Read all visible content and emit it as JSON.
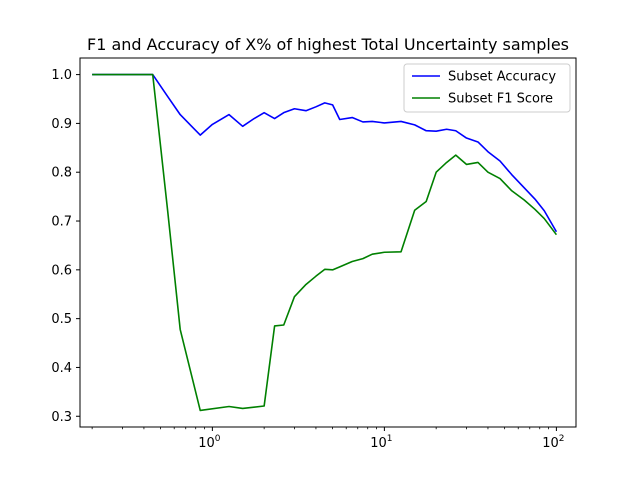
{
  "chart_data": {
    "type": "line",
    "title": "F1 and Accuracy of X% of highest Total Uncertainty samples",
    "xlabel": "",
    "ylabel": "",
    "xscale": "log",
    "xlim": [
      0.17,
      130
    ],
    "ylim": [
      0.278,
      1.034
    ],
    "grid": false,
    "legend_position": "top-right",
    "x_ticks": [
      {
        "value": 1,
        "base": "10",
        "exp": "0"
      },
      {
        "value": 10,
        "base": "10",
        "exp": "1"
      },
      {
        "value": 100,
        "base": "10",
        "exp": "2"
      }
    ],
    "y_ticks": [
      {
        "value": 0.3,
        "label": "0.3"
      },
      {
        "value": 0.4,
        "label": "0.4"
      },
      {
        "value": 0.5,
        "label": "0.5"
      },
      {
        "value": 0.6,
        "label": "0.6"
      },
      {
        "value": 0.7,
        "label": "0.7"
      },
      {
        "value": 0.8,
        "label": "0.8"
      },
      {
        "value": 0.9,
        "label": "0.9"
      },
      {
        "value": 1.0,
        "label": "1.0"
      }
    ],
    "series": [
      {
        "name": "Subset Accuracy",
        "color": "#0000ff",
        "points": [
          [
            0.2,
            1.0
          ],
          [
            0.3,
            1.0
          ],
          [
            0.45,
            1.0
          ],
          [
            0.55,
            0.955
          ],
          [
            0.65,
            0.918
          ],
          [
            0.85,
            0.876
          ],
          [
            1.0,
            0.898
          ],
          [
            1.25,
            0.918
          ],
          [
            1.5,
            0.894
          ],
          [
            1.75,
            0.91
          ],
          [
            2.0,
            0.922
          ],
          [
            2.3,
            0.91
          ],
          [
            2.6,
            0.922
          ],
          [
            3.0,
            0.93
          ],
          [
            3.5,
            0.926
          ],
          [
            4.0,
            0.934
          ],
          [
            4.5,
            0.942
          ],
          [
            5.0,
            0.938
          ],
          [
            5.5,
            0.908
          ],
          [
            6.5,
            0.912
          ],
          [
            7.5,
            0.903
          ],
          [
            8.5,
            0.904
          ],
          [
            10.0,
            0.901
          ],
          [
            12.5,
            0.904
          ],
          [
            15.0,
            0.897
          ],
          [
            17.5,
            0.885
          ],
          [
            20.0,
            0.884
          ],
          [
            23.0,
            0.888
          ],
          [
            26.0,
            0.885
          ],
          [
            30.0,
            0.87
          ],
          [
            35.0,
            0.862
          ],
          [
            40.0,
            0.842
          ],
          [
            47.0,
            0.823
          ],
          [
            55.0,
            0.795
          ],
          [
            65.0,
            0.768
          ],
          [
            75.0,
            0.745
          ],
          [
            85.0,
            0.721
          ],
          [
            100.0,
            0.678
          ]
        ]
      },
      {
        "name": "Subset F1 Score",
        "color": "#008000",
        "points": [
          [
            0.2,
            1.0
          ],
          [
            0.3,
            1.0
          ],
          [
            0.45,
            1.0
          ],
          [
            0.55,
            0.72
          ],
          [
            0.65,
            0.478
          ],
          [
            0.85,
            0.312
          ],
          [
            1.25,
            0.32
          ],
          [
            1.5,
            0.316
          ],
          [
            2.0,
            0.321
          ],
          [
            2.3,
            0.485
          ],
          [
            2.6,
            0.487
          ],
          [
            3.0,
            0.545
          ],
          [
            3.5,
            0.57
          ],
          [
            4.0,
            0.587
          ],
          [
            4.5,
            0.601
          ],
          [
            5.0,
            0.6
          ],
          [
            5.5,
            0.606
          ],
          [
            6.5,
            0.617
          ],
          [
            7.5,
            0.623
          ],
          [
            8.5,
            0.632
          ],
          [
            10.0,
            0.636
          ],
          [
            12.5,
            0.637
          ],
          [
            15.0,
            0.722
          ],
          [
            17.5,
            0.74
          ],
          [
            20.0,
            0.8
          ],
          [
            23.0,
            0.82
          ],
          [
            26.0,
            0.835
          ],
          [
            30.0,
            0.816
          ],
          [
            35.0,
            0.82
          ],
          [
            40.0,
            0.8
          ],
          [
            47.0,
            0.787
          ],
          [
            55.0,
            0.762
          ],
          [
            65.0,
            0.743
          ],
          [
            75.0,
            0.724
          ],
          [
            85.0,
            0.705
          ],
          [
            100.0,
            0.672
          ]
        ]
      }
    ]
  }
}
